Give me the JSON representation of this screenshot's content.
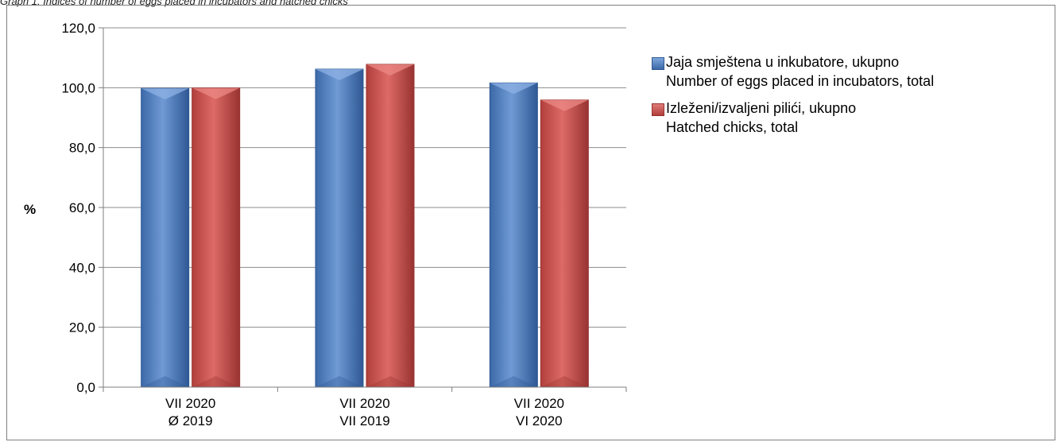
{
  "caption": "Graph 1. Indices of number of eggs placed in incubators and hatched chicks",
  "chart_data": {
    "type": "bar",
    "title": "",
    "xlabel": "",
    "ylabel": "%",
    "ylim": [
      0,
      120
    ],
    "yticks": [
      "0,0",
      "20,0",
      "40,0",
      "60,0",
      "80,0",
      "100,0",
      "120,0"
    ],
    "grid": true,
    "legend_position": "right",
    "categories": [
      [
        "VII 2020",
        "Ø 2019"
      ],
      [
        "VII 2020",
        "VII 2019"
      ],
      [
        "VII 2020",
        "VI 2020"
      ]
    ],
    "series": [
      {
        "name_lines": [
          "Jaja smještena u inkubatore, ukupno",
          "Number  of eggs placed in incubators, total"
        ],
        "color": "#4f81bd",
        "values": [
          99.8,
          106.2,
          101.6
        ]
      },
      {
        "name_lines": [
          "Izleženi/izvaljeni pilići, ukupno",
          "Hatched chicks, total"
        ],
        "color": "#c0504d",
        "values": [
          99.9,
          107.8,
          95.9
        ]
      }
    ]
  }
}
